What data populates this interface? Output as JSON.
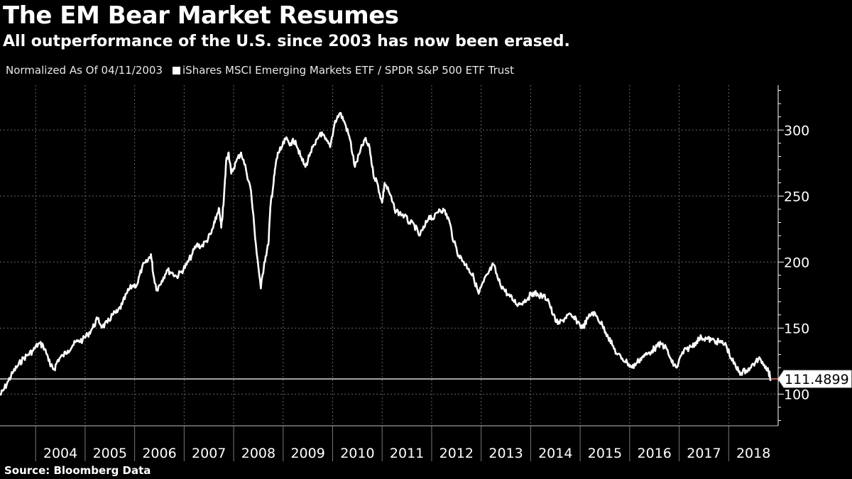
{
  "header": {
    "title": "The EM Bear Market Resumes",
    "subtitle": "All outperformance of the U.S. since 2003 has now been erased."
  },
  "legend": {
    "note": "Normalized As Of 04/11/2003",
    "series_label": "iShares MSCI Emerging Markets ETF / SPDR S&P 500 ETF Trust"
  },
  "footer": {
    "source": "Source: Bloomberg Data"
  },
  "colors": {
    "background": "#000000",
    "line": "#ffffff",
    "grid": "#666666",
    "accent": "#e07060"
  },
  "chart_data": {
    "type": "line",
    "title": "The EM Bear Market Resumes",
    "subtitle": "All outperformance of the U.S. since 2003 has now been erased.",
    "xlabel": "",
    "ylabel": "",
    "xlim": [
      2003.28,
      2019.0
    ],
    "ylim": [
      76,
      334
    ],
    "y_ticks": [
      100,
      150,
      200,
      250,
      300
    ],
    "x_tick_labels": [
      "2004",
      "2005",
      "2006",
      "2007",
      "2008",
      "2009",
      "2010",
      "2011",
      "2012",
      "2013",
      "2014",
      "2015",
      "2016",
      "2017",
      "2018"
    ],
    "grid": true,
    "legend_position": "top-left",
    "reference_line": 111.4899,
    "last_value_label": "111.4899",
    "series": [
      {
        "name": "iShares MSCI Emerging Markets ETF / SPDR S&P 500 ETF Trust",
        "x": [
          2003.28,
          2003.35,
          2003.45,
          2003.55,
          2003.65,
          2003.75,
          2003.85,
          2003.95,
          2004.05,
          2004.15,
          2004.25,
          2004.3,
          2004.38,
          2004.45,
          2004.55,
          2004.65,
          2004.75,
          2004.85,
          2004.95,
          2005.05,
          2005.15,
          2005.25,
          2005.35,
          2005.45,
          2005.55,
          2005.65,
          2005.75,
          2005.85,
          2005.95,
          2006.05,
          2006.15,
          2006.25,
          2006.33,
          2006.38,
          2006.45,
          2006.55,
          2006.65,
          2006.75,
          2006.85,
          2006.95,
          2007.05,
          2007.15,
          2007.25,
          2007.35,
          2007.45,
          2007.55,
          2007.62,
          2007.7,
          2007.75,
          2007.8,
          2007.85,
          2007.9,
          2007.95,
          2008.05,
          2008.15,
          2008.25,
          2008.35,
          2008.45,
          2008.55,
          2008.62,
          2008.7,
          2008.75,
          2008.8,
          2008.85,
          2008.9,
          2008.95,
          2009.05,
          2009.15,
          2009.25,
          2009.35,
          2009.45,
          2009.55,
          2009.65,
          2009.75,
          2009.85,
          2009.95,
          2010.05,
          2010.15,
          2010.25,
          2010.35,
          2010.45,
          2010.55,
          2010.65,
          2010.75,
          2010.82,
          2010.9,
          2011.0,
          2011.05,
          2011.15,
          2011.25,
          2011.35,
          2011.45,
          2011.55,
          2011.65,
          2011.75,
          2011.85,
          2011.95,
          2012.05,
          2012.15,
          2012.25,
          2012.35,
          2012.45,
          2012.55,
          2012.65,
          2012.75,
          2012.85,
          2012.95,
          2013.05,
          2013.15,
          2013.25,
          2013.35,
          2013.45,
          2013.55,
          2013.65,
          2013.75,
          2013.85,
          2013.95,
          2014.05,
          2014.15,
          2014.25,
          2014.35,
          2014.45,
          2014.55,
          2014.65,
          2014.75,
          2014.85,
          2014.95,
          2015.05,
          2015.15,
          2015.25,
          2015.35,
          2015.45,
          2015.55,
          2015.65,
          2015.75,
          2015.85,
          2015.95,
          2016.05,
          2016.15,
          2016.25,
          2016.35,
          2016.45,
          2016.55,
          2016.65,
          2016.75,
          2016.85,
          2016.95,
          2017.05,
          2017.15,
          2017.25,
          2017.35,
          2017.45,
          2017.55,
          2017.65,
          2017.75,
          2017.85,
          2017.95,
          2018.05,
          2018.15,
          2018.25,
          2018.35,
          2018.45,
          2018.55,
          2018.65,
          2018.75,
          2018.8,
          2018.85
        ],
        "values": [
          99,
          103,
          110,
          117,
          122,
          127,
          130,
          133,
          138,
          137,
          128,
          121,
          119,
          126,
          129,
          133,
          137,
          140,
          141,
          145,
          150,
          157,
          151,
          154,
          160,
          162,
          168,
          177,
          182,
          183,
          196,
          200,
          206,
          190,
          179,
          186,
          194,
          192,
          189,
          193,
          198,
          205,
          213,
          212,
          216,
          222,
          230,
          241,
          226,
          246,
          277,
          283,
          267,
          276,
          283,
          270,
          254,
          213,
          180,
          200,
          213,
          245,
          258,
          274,
          283,
          285,
          293,
          290,
          292,
          280,
          272,
          283,
          289,
          298,
          293,
          287,
          307,
          313,
          305,
          293,
          272,
          283,
          293,
          286,
          267,
          260,
          245,
          260,
          252,
          240,
          237,
          235,
          230,
          228,
          220,
          226,
          235,
          233,
          240,
          239,
          232,
          215,
          205,
          200,
          195,
          188,
          176,
          185,
          192,
          198,
          186,
          180,
          175,
          171,
          168,
          170,
          173,
          177,
          175,
          174,
          172,
          160,
          153,
          156,
          160,
          158,
          155,
          150,
          157,
          162,
          158,
          152,
          145,
          137,
          130,
          127,
          124,
          120,
          124,
          128,
          130,
          133,
          136,
          138,
          134,
          124,
          120,
          130,
          134,
          136,
          140,
          143,
          142,
          141,
          140,
          139,
          137,
          127,
          120,
          116,
          118,
          120,
          125,
          126,
          121,
          118,
          111.5
        ]
      }
    ]
  }
}
